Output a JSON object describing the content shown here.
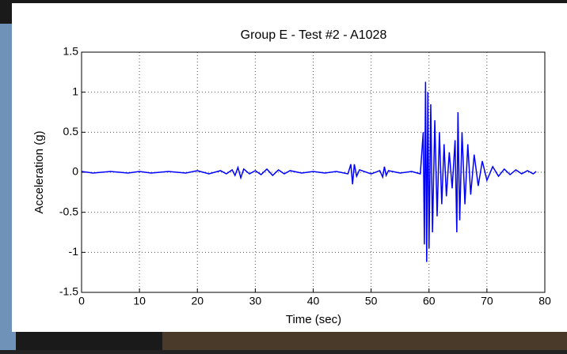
{
  "chart_data": {
    "type": "line",
    "title": "Group E - Test #2 - A1028",
    "x_label": "Time (sec)",
    "y_label": "Acceleration (g)",
    "xlim": [
      0,
      80
    ],
    "xticks": [
      0,
      10,
      20,
      30,
      40,
      50,
      60,
      70,
      80
    ],
    "ylim": [
      -1.5,
      1.5
    ],
    "yticks": [
      -1.5,
      -1,
      -0.5,
      0,
      0.5,
      1,
      1.5
    ],
    "grid": true,
    "series": [
      {
        "color": "#0000ff",
        "x": [
          0,
          2,
          5,
          8,
          10,
          12,
          15,
          18,
          20,
          22,
          24,
          25,
          26,
          26.5,
          27,
          27.5,
          28,
          29,
          30,
          31,
          32,
          33,
          34,
          35,
          36,
          38,
          40,
          42,
          44,
          46,
          46.5,
          46.8,
          47.1,
          47.5,
          48,
          50,
          51.5,
          52,
          52.3,
          52.6,
          53,
          55,
          57,
          58.5,
          59,
          59.2,
          59.4,
          59.6,
          59.8,
          60,
          60.3,
          60.6,
          61,
          61.4,
          61.8,
          62.2,
          62.6,
          63,
          63.5,
          64,
          64.5,
          64.8,
          65,
          65.3,
          65.7,
          66.2,
          66.7,
          67.2,
          67.8,
          68.5,
          69.2,
          70,
          71,
          72,
          73,
          74,
          75,
          76,
          77,
          78,
          78.5
        ],
        "values": [
          0.01,
          -0.01,
          0.01,
          -0.01,
          0.01,
          -0.01,
          0.01,
          -0.01,
          0.02,
          -0.02,
          0.02,
          -0.02,
          0.03,
          -0.04,
          0.06,
          -0.07,
          0.04,
          -0.02,
          0.02,
          -0.03,
          0.04,
          -0.04,
          0.03,
          -0.02,
          0.02,
          -0.01,
          0.01,
          -0.01,
          0.01,
          -0.02,
          0.1,
          -0.15,
          0.1,
          -0.05,
          0.03,
          -0.02,
          0.02,
          -0.06,
          0.07,
          -0.04,
          0.02,
          -0.01,
          0.01,
          -0.02,
          0.5,
          -0.9,
          1.13,
          -1.12,
          1.0,
          -0.95,
          0.85,
          -0.75,
          0.65,
          -0.55,
          0.5,
          -0.4,
          0.35,
          -0.3,
          0.25,
          -0.2,
          0.4,
          -0.75,
          0.75,
          -0.6,
          0.5,
          -0.4,
          0.35,
          -0.28,
          0.22,
          -0.17,
          0.14,
          -0.1,
          0.07,
          -0.05,
          0.04,
          -0.03,
          0.03,
          -0.02,
          0.02,
          -0.02,
          0.01
        ]
      }
    ]
  }
}
